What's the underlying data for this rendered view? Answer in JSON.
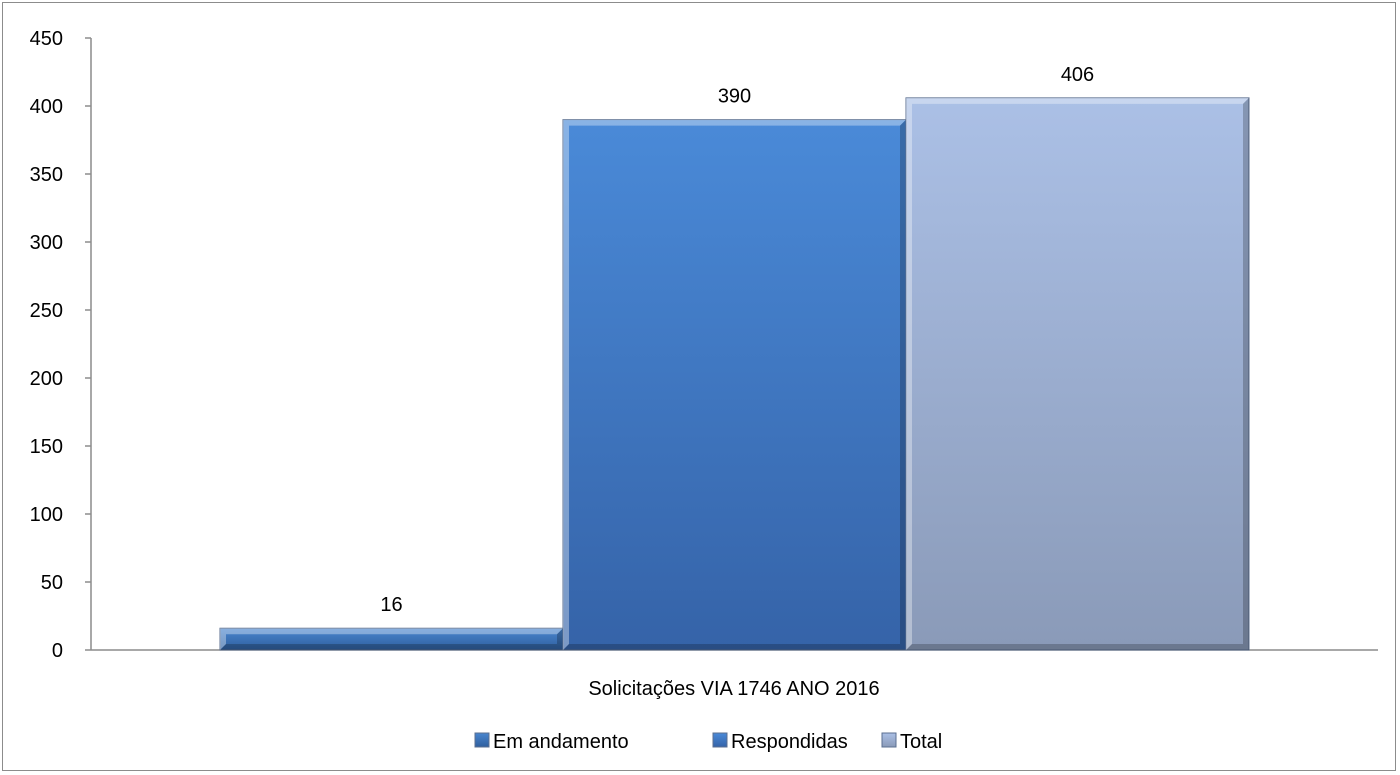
{
  "chart_data": {
    "type": "bar",
    "categories": [
      "Solicitações VIA 1746  ANO 2016"
    ],
    "series": [
      {
        "name": "Em andamento",
        "values": [
          16
        ],
        "color": "#2f5f9e",
        "color_top": "#4a86cf"
      },
      {
        "name": "Respondidas",
        "values": [
          390
        ],
        "color": "#3563a8",
        "color_top": "#4a8ad8"
      },
      {
        "name": "Total",
        "values": [
          406
        ],
        "color": "#8a9ab8",
        "color_top": "#abc0e6"
      }
    ],
    "data_labels": [
      "16",
      "390",
      "406"
    ],
    "y_ticks": [
      "0",
      "50",
      "100",
      "150",
      "200",
      "250",
      "300",
      "350",
      "400",
      "450"
    ],
    "ylim": [
      0,
      450
    ],
    "title": "",
    "xlabel": "",
    "ylabel": "",
    "grid": false,
    "legend_position": "bottom"
  }
}
